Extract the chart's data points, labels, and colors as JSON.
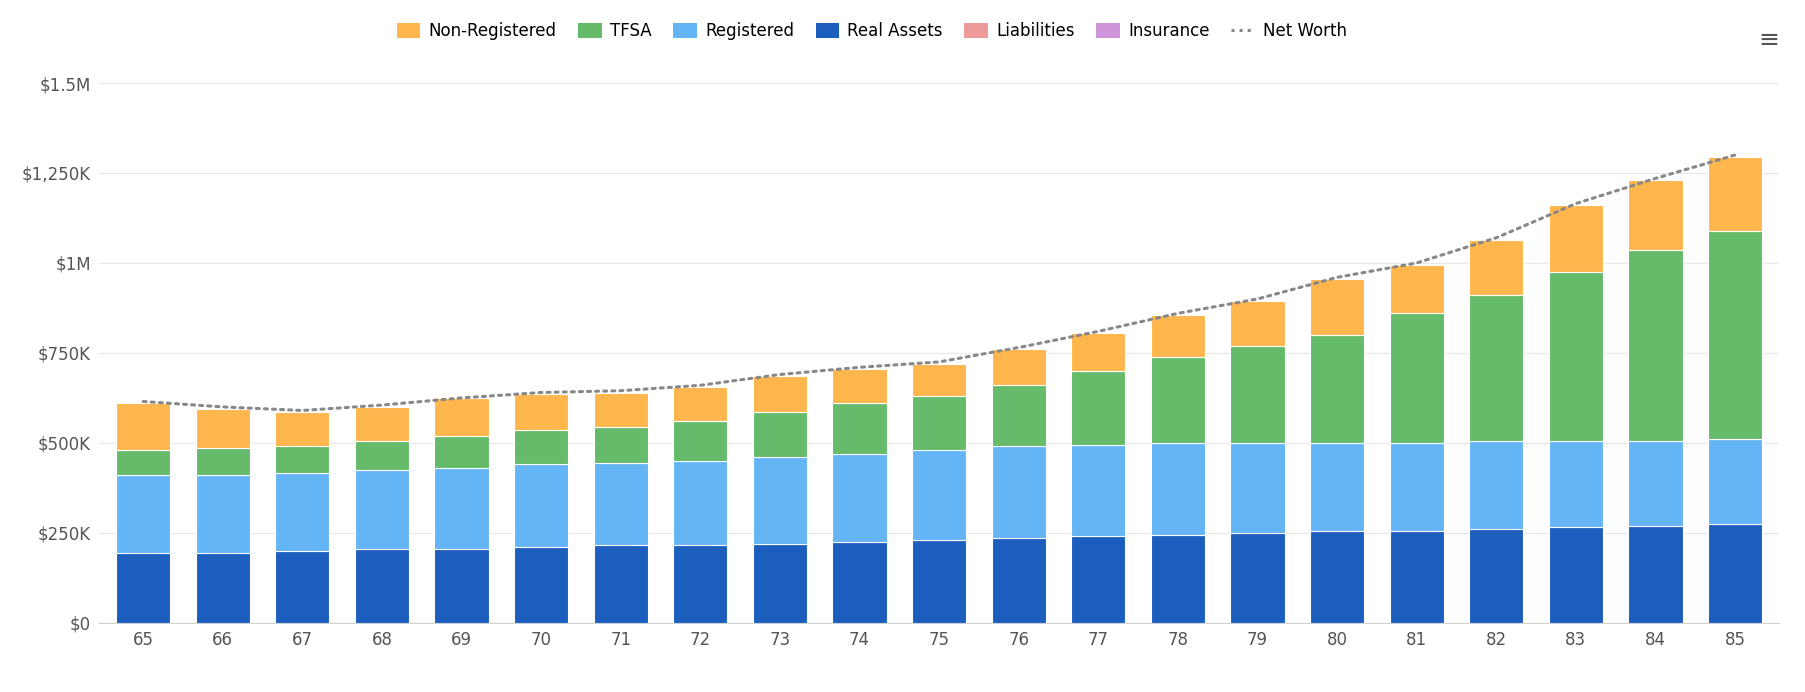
{
  "ages": [
    65,
    66,
    67,
    68,
    69,
    70,
    71,
    72,
    73,
    74,
    75,
    76,
    77,
    78,
    79,
    80,
    81,
    82,
    83,
    84,
    85
  ],
  "real_assets": [
    195000,
    195000,
    200000,
    205000,
    205000,
    210000,
    215000,
    215000,
    220000,
    225000,
    230000,
    235000,
    240000,
    245000,
    250000,
    255000,
    255000,
    260000,
    265000,
    270000,
    275000
  ],
  "registered": [
    215000,
    215000,
    215000,
    220000,
    225000,
    230000,
    230000,
    235000,
    240000,
    245000,
    250000,
    255000,
    255000,
    255000,
    250000,
    245000,
    245000,
    245000,
    240000,
    235000,
    235000
  ],
  "tfsa": [
    70000,
    75000,
    75000,
    80000,
    90000,
    95000,
    100000,
    110000,
    125000,
    140000,
    150000,
    170000,
    205000,
    240000,
    270000,
    300000,
    360000,
    405000,
    470000,
    530000,
    580000
  ],
  "non_registered": [
    130000,
    110000,
    95000,
    95000,
    105000,
    100000,
    95000,
    95000,
    100000,
    95000,
    90000,
    100000,
    105000,
    115000,
    125000,
    155000,
    135000,
    155000,
    185000,
    195000,
    205000
  ],
  "liabilities": [
    0,
    0,
    0,
    0,
    0,
    0,
    0,
    0,
    0,
    0,
    0,
    0,
    0,
    0,
    0,
    0,
    0,
    0,
    0,
    0,
    0
  ],
  "insurance": [
    0,
    0,
    0,
    0,
    0,
    0,
    0,
    0,
    0,
    0,
    0,
    0,
    0,
    0,
    0,
    0,
    0,
    0,
    0,
    0,
    0
  ],
  "net_worth": [
    615000,
    600000,
    590000,
    605000,
    625000,
    640000,
    645000,
    660000,
    690000,
    710000,
    725000,
    765000,
    810000,
    860000,
    900000,
    960000,
    1000000,
    1070000,
    1165000,
    1235000,
    1300000
  ],
  "colors": {
    "real_assets": "#1B5EBE",
    "registered": "#64B5F6",
    "tfsa": "#66BB6A",
    "non_registered": "#FFB74D",
    "liabilities": "#EF9A9A",
    "insurance": "#CE93D8",
    "net_worth": "#888888"
  },
  "ylim": [
    0,
    1500000
  ],
  "yticks": [
    0,
    250000,
    500000,
    750000,
    1000000,
    1250000,
    1500000
  ],
  "ytick_labels": [
    "$0",
    "$250K",
    "$500K",
    "$750K",
    "$1M",
    "$1,250K",
    "$1.5M"
  ],
  "background_color": "#ffffff",
  "bar_edge_color": "white",
  "grid_color": "#e8e8e8",
  "fig_width": 18.06,
  "fig_height": 6.92,
  "dpi": 100
}
